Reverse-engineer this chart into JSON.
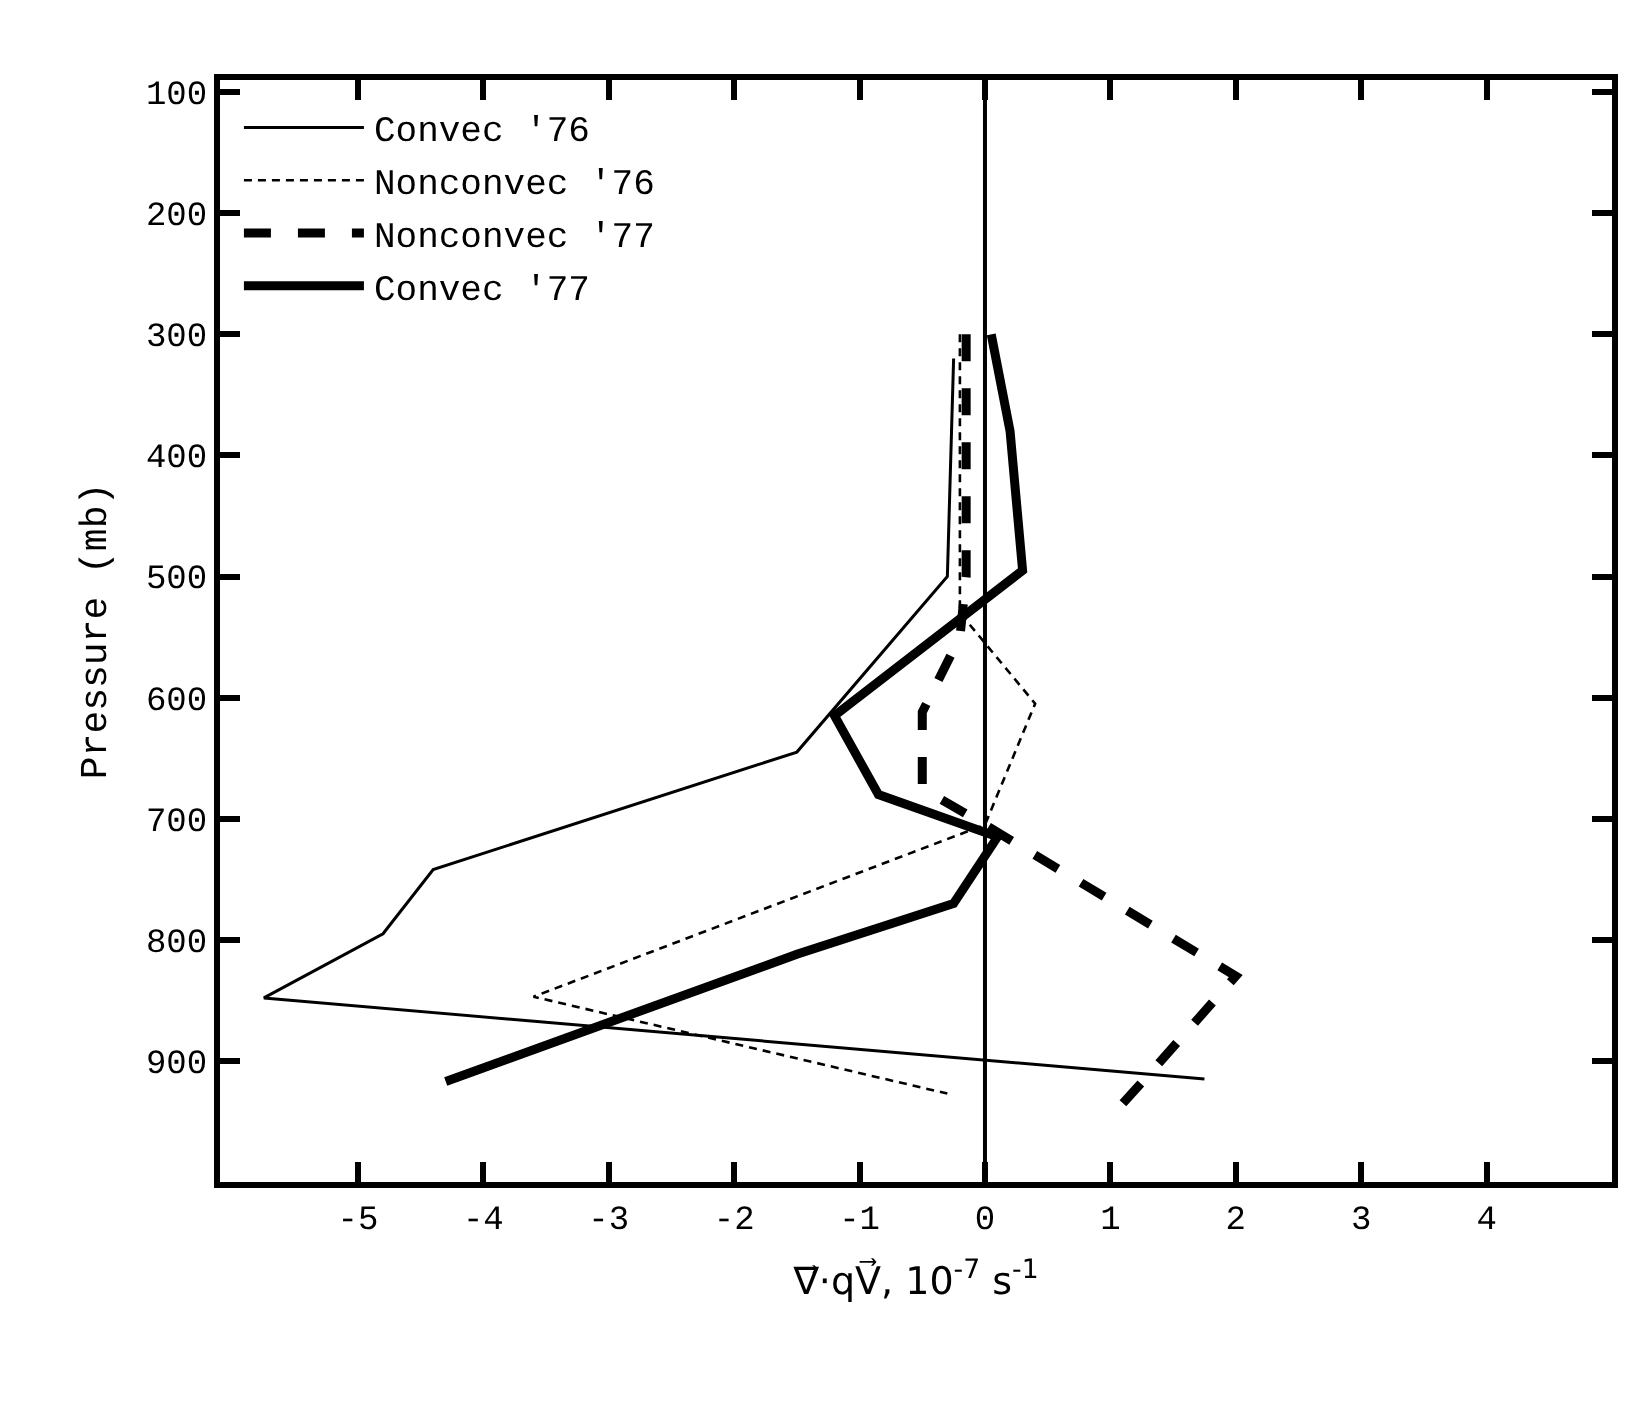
{
  "chart_data": {
    "type": "line",
    "xlabel": "∇⃗·qV⃗, 10$^{-7}$ s$^{-1}$",
    "ylabel": "Pressure (mb)",
    "xlim": [
      -6.1,
      5.0
    ],
    "xticks": [
      -5,
      -4,
      -3,
      -2,
      -1,
      0,
      1,
      2,
      3,
      4
    ],
    "ylim": [
      1000,
      90
    ],
    "yticks": [
      100,
      200,
      300,
      400,
      500,
      600,
      700,
      800,
      900
    ],
    "legend": "top left",
    "marker": "none",
    "ref_lines": [
      {
        "axis": "x",
        "value": 0,
        "color": "#000000",
        "line_style": "solid"
      }
    ],
    "series": [
      {
        "name": "Convec '76",
        "color": "#000000",
        "line_style": "solid",
        "x": [
          -0.25,
          -0.3,
          -1.5,
          -4.4,
          -4.8,
          -5.75,
          1.75
        ],
        "values": [
          320,
          500,
          645,
          742,
          795,
          848,
          915
        ]
      },
      {
        "name": "Nonconvec '76",
        "color": "#000000",
        "line_style": "dashed",
        "x": [
          -0.2,
          -0.2,
          0.4,
          0.0,
          -3.6,
          -0.3
        ],
        "values": [
          300,
          530,
          605,
          705,
          847,
          927
        ]
      },
      {
        "name": "Nonconvec '77",
        "color": "#000000",
        "line_style": "dashed",
        "x": [
          -0.15,
          -0.15,
          -0.2,
          -0.5,
          -0.5,
          0.0,
          2.0,
          1.3,
          1.1
        ],
        "values": [
          300,
          500,
          550,
          612,
          675,
          705,
          830,
          912,
          935
        ]
      },
      {
        "name": "Convec '77",
        "color": "#000000",
        "line_style": "solid",
        "x": [
          0.05,
          0.2,
          0.3,
          -1.2,
          -0.85,
          0.1,
          -0.25,
          -1.5,
          -4.3
        ],
        "values": [
          300,
          380,
          495,
          615,
          680,
          715,
          770,
          812,
          917
        ]
      }
    ]
  }
}
